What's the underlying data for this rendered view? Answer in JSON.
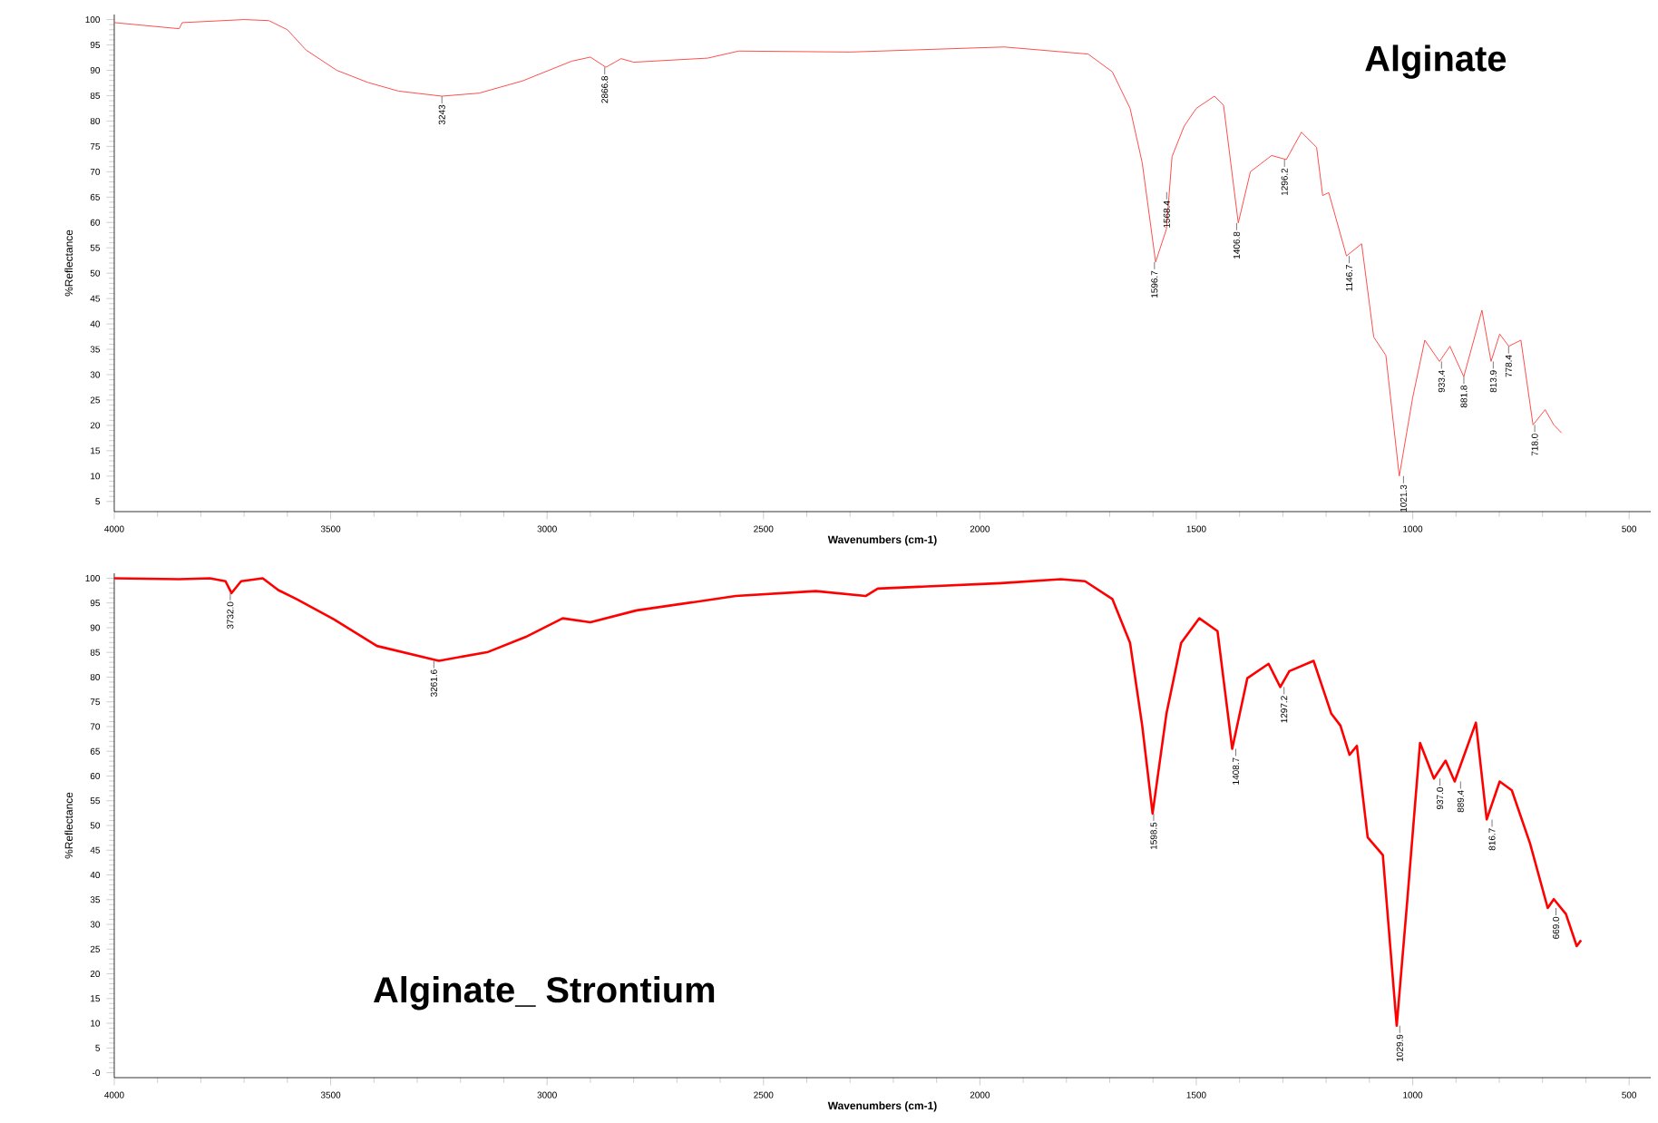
{
  "chart_data": [
    {
      "type": "line",
      "title": "Alginate",
      "xlabel": "Wavenumbers (cm-1)",
      "ylabel": "%Reflectance",
      "xlim": [
        4000,
        450
      ],
      "ylim": [
        3,
        101
      ],
      "xticks": [
        4000,
        3500,
        3000,
        2500,
        2000,
        1500,
        1000,
        500
      ],
      "yticks": [
        5,
        10,
        15,
        20,
        25,
        30,
        35,
        40,
        45,
        50,
        55,
        60,
        65,
        70,
        75,
        80,
        85,
        90,
        95,
        100
      ],
      "grid": false,
      "marker": "none",
      "line_style": "solid",
      "series": [
        {
          "color": "#ff4d4d",
          "x": [
            4000,
            3850,
            3843,
            3700,
            3643,
            3600,
            3557,
            3486,
            3414,
            3343,
            3243,
            3157,
            3057,
            2943,
            2900,
            2864,
            2829,
            2800,
            2629,
            2557,
            2300,
            1944,
            1750,
            1694,
            1653,
            1625,
            1594,
            1569,
            1556,
            1528,
            1500,
            1458,
            1437,
            1403,
            1375,
            1326,
            1292,
            1257,
            1222,
            1208,
            1194,
            1153,
            1118,
            1090,
            1062,
            1031,
            1000,
            972,
            938,
            914,
            882,
            840,
            819,
            799,
            778,
            750,
            722,
            694,
            674,
            656
          ],
          "values": [
            99.4,
            98.2,
            99.4,
            100,
            99.8,
            98,
            94,
            90,
            87.6,
            85.9,
            84.9,
            85.5,
            87.9,
            91.8,
            92.6,
            90.6,
            92.3,
            91.6,
            92.4,
            93.8,
            93.6,
            94.6,
            93.2,
            89.7,
            82.5,
            71.8,
            52.2,
            58.7,
            73,
            79,
            82.5,
            84.9,
            83.1,
            59.9,
            70,
            73.2,
            72.4,
            77.8,
            74.8,
            65.3,
            65.9,
            53.4,
            55.8,
            37.4,
            33.8,
            10,
            25.5,
            36.8,
            32.6,
            35.6,
            29.6,
            42.7,
            32.6,
            38,
            35.6,
            36.8,
            20.1,
            23.1,
            20.1,
            18.5
          ]
        }
      ],
      "annotations": [
        {
          "text": "3243",
          "x": 3243,
          "y": 84.9
        },
        {
          "text": "2866.8",
          "x": 2866.8,
          "y": 90.6
        },
        {
          "text": "1596.7",
          "x": 1596.7,
          "y": 52.2
        },
        {
          "text": "1568.4",
          "x": 1568.4,
          "y": 66
        },
        {
          "text": "1406.8",
          "x": 1406.8,
          "y": 59.9
        },
        {
          "text": "1296.2",
          "x": 1296.2,
          "y": 72.4
        },
        {
          "text": "1146.7",
          "x": 1146.7,
          "y": 53.4
        },
        {
          "text": "1021.3",
          "x": 1021.3,
          "y": 10
        },
        {
          "text": "933.4",
          "x": 933.4,
          "y": 32.6
        },
        {
          "text": "881.8",
          "x": 881.8,
          "y": 29.6
        },
        {
          "text": "813.9",
          "x": 813.9,
          "y": 32.6
        },
        {
          "text": "778.4",
          "x": 778.4,
          "y": 35.6
        },
        {
          "text": "718.0",
          "x": 718.0,
          "y": 20.1
        }
      ]
    },
    {
      "type": "line",
      "title": "Alginate_ Strontium",
      "xlabel": "Wavenumbers (cm-1)",
      "ylabel": "%Reflectance",
      "xlim": [
        4000,
        450
      ],
      "ylim": [
        -1,
        101
      ],
      "xticks": [
        4000,
        3500,
        3000,
        2500,
        2000,
        1500,
        1000,
        500
      ],
      "yticks": [
        {
          "value": 0,
          "label": "-0"
        },
        5,
        10,
        15,
        20,
        25,
        30,
        35,
        40,
        45,
        50,
        55,
        60,
        65,
        70,
        75,
        80,
        85,
        90,
        95,
        100
      ],
      "grid": false,
      "marker": "none",
      "line_style": "solid",
      "series": [
        {
          "color": "#ff0000",
          "x": [
            4000,
            3850,
            3779,
            3743,
            3729,
            3707,
            3657,
            3621,
            3579,
            3493,
            3393,
            3250,
            3136,
            3050,
            2964,
            2900,
            2793,
            2564,
            2379,
            2264,
            2236,
            1951,
            1813,
            1757,
            1694,
            1653,
            1625,
            1601,
            1569,
            1535,
            1493,
            1451,
            1417,
            1382,
            1333,
            1306,
            1285,
            1229,
            1188,
            1167,
            1146,
            1129,
            1104,
            1069,
            1037,
            1014,
            983,
            951,
            924,
            903,
            854,
            829,
            799,
            771,
            729,
            688,
            674,
            646,
            621,
            611
          ],
          "values": [
            100,
            99.8,
            100,
            99.4,
            97,
            99.4,
            100,
            97.6,
            95.8,
            91.7,
            86.3,
            83.3,
            85.1,
            88.1,
            91.9,
            91.1,
            93.5,
            96.4,
            97.4,
            96.4,
            97.9,
            99,
            99.8,
            99.4,
            95.8,
            86.9,
            70.2,
            52.4,
            72.6,
            86.9,
            91.9,
            89.3,
            65.5,
            79.8,
            82.7,
            78,
            81.2,
            83.3,
            72.6,
            70.2,
            64.3,
            66.1,
            47.6,
            44,
            9.5,
            33.3,
            66.7,
            59.5,
            63.1,
            58.9,
            70.8,
            51.2,
            58.9,
            57.1,
            46.4,
            33.3,
            35.1,
            32.1,
            25.6,
            26.8
          ]
        }
      ],
      "annotations": [
        {
          "text": "3732.0",
          "x": 3732.0,
          "y": 97
        },
        {
          "text": "3261.6",
          "x": 3261.6,
          "y": 83.3
        },
        {
          "text": "1598.5",
          "x": 1598.5,
          "y": 52.4
        },
        {
          "text": "1408.7",
          "x": 1408.7,
          "y": 65.5
        },
        {
          "text": "1297.2",
          "x": 1297.2,
          "y": 78
        },
        {
          "text": "1029.9",
          "x": 1029.9,
          "y": 9.5
        },
        {
          "text": "937.0",
          "x": 937.0,
          "y": 59.5
        },
        {
          "text": "889.4",
          "x": 889.4,
          "y": 58.9
        },
        {
          "text": "816.7",
          "x": 816.7,
          "y": 51.2
        },
        {
          "text": "669.0",
          "x": 669.0,
          "y": 33.3
        }
      ]
    }
  ]
}
